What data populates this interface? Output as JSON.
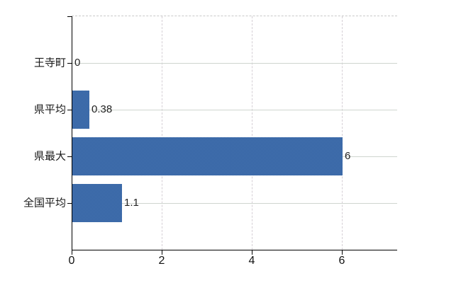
{
  "chart_data": {
    "type": "bar",
    "orientation": "horizontal",
    "title": "",
    "xlabel": "",
    "ylabel": "",
    "categories": [
      "王寺町",
      "県平均",
      "県最大",
      "全国平均"
    ],
    "values": [
      0,
      0.38,
      6,
      1.1
    ],
    "data_labels": [
      "0",
      "0.38",
      "6",
      "1.1"
    ],
    "x_ticks": [
      0,
      2,
      4,
      6
    ],
    "x_tick_labels": [
      "0",
      "2",
      "4",
      "6"
    ],
    "xlim": [
      0,
      7.23
    ],
    "grid": "vertical-dashed-and-horizontal-solid-row-lines",
    "legend_position": "none",
    "colors": {
      "bar_light": "#4a78bb",
      "bar_dark": "#2f5d97",
      "bar_average": "#3e6ba6",
      "hgrid": "#cfd5cf",
      "vgrid": "#d5cfd5",
      "top_border_dash": "#c9c9c9",
      "axis": "#000000",
      "text": "#1a1a1a",
      "background": "#ffffff"
    }
  }
}
